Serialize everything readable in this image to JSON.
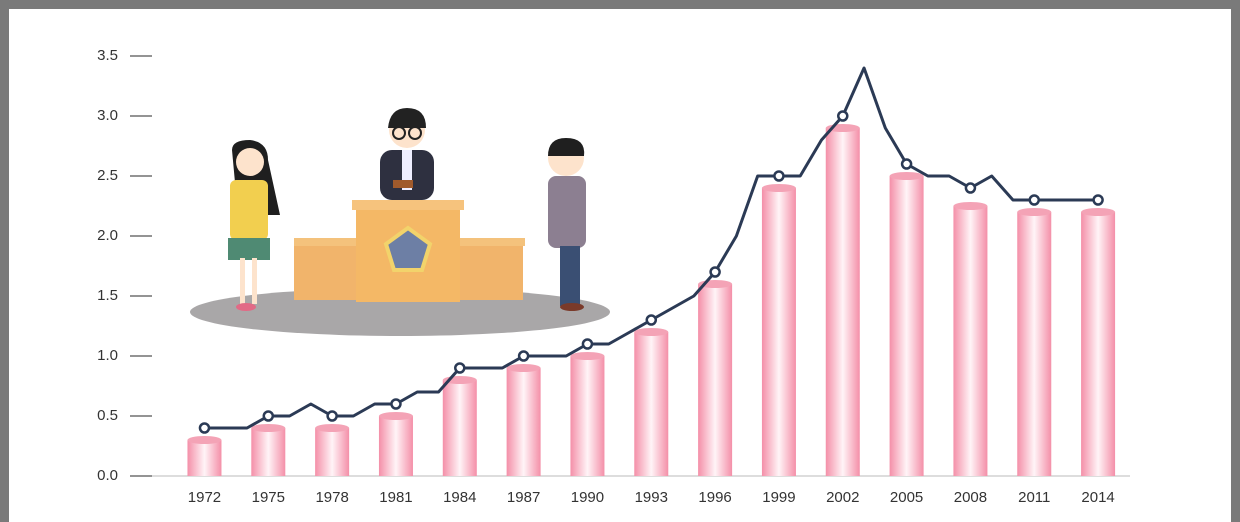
{
  "chart_data": {
    "type": "combo",
    "xlim": [
      1968.5,
      2015.5
    ],
    "xticks": [
      1972,
      1975,
      1978,
      1981,
      1984,
      1987,
      1990,
      1993,
      1996,
      1999,
      2002,
      2005,
      2008,
      2011,
      2014
    ],
    "ylim": [
      0,
      3.5
    ],
    "yticks": [
      {
        "value": 0,
        "label": "0.0"
      },
      0.5,
      {
        "value": 1,
        "label": "1.0"
      },
      1.5,
      {
        "value": 2,
        "label": "2.0"
      },
      2.5,
      {
        "value": 3,
        "label": "3.0"
      },
      3.5
    ],
    "series": [
      {
        "type": "bar",
        "color": "#f4a3b6",
        "x": [
          1972,
          1975,
          1978,
          1981,
          1984,
          1987,
          1990,
          1993,
          1996,
          1999,
          2002,
          2005,
          2008,
          2011,
          2014
        ],
        "values": [
          0.3,
          0.4,
          0.4,
          0.5,
          0.8,
          0.9,
          1.0,
          1.2,
          1.6,
          2.4,
          2.9,
          2.5,
          2.25,
          2.2,
          2.2
        ]
      },
      {
        "type": "line",
        "color": "#2b3a55",
        "marker_every": 3,
        "x": [
          1972,
          1973,
          1974,
          1975,
          1976,
          1977,
          1978,
          1979,
          1980,
          1981,
          1982,
          1983,
          1984,
          1985,
          1986,
          1987,
          1988,
          1989,
          1990,
          1991,
          1992,
          1993,
          1994,
          1995,
          1996,
          1997,
          1998,
          1999,
          2000,
          2001,
          2002,
          2003,
          2004,
          2005,
          2006,
          2007,
          2008,
          2009,
          2010,
          2011,
          2012,
          2013,
          2014
        ],
        "values": [
          0.4,
          0.4,
          0.4,
          0.5,
          0.5,
          0.6,
          0.5,
          0.5,
          0.6,
          0.6,
          0.7,
          0.7,
          0.9,
          0.9,
          0.9,
          1.0,
          1.0,
          1.0,
          1.1,
          1.1,
          1.2,
          1.3,
          1.4,
          1.5,
          1.7,
          2.0,
          2.5,
          2.5,
          2.5,
          2.8,
          3.0,
          3.4,
          2.9,
          2.6,
          2.5,
          2.5,
          2.4,
          2.5,
          2.3,
          2.3,
          2.3,
          2.3,
          2.3
        ]
      }
    ]
  }
}
